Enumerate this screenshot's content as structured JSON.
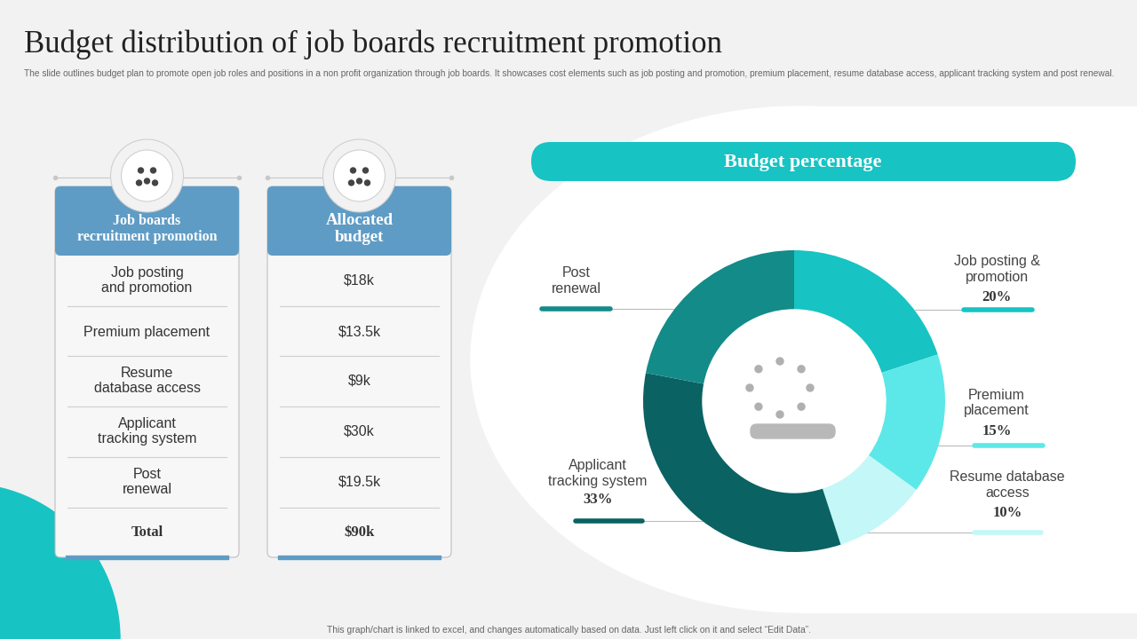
{
  "header": {
    "title": "Budget distribution of job boards recruitment promotion",
    "subtitle": "The slide outlines budget plan to promote open job roles and positions in a non profit organization through job boards. It showcases cost elements such as job posting and promotion, premium placement, resume database access, applicant tracking system and post renewal."
  },
  "table": {
    "columns": [
      "Job boards\nrecruitment promotion",
      "Allocated\nbudget"
    ],
    "rows": [
      [
        "Job posting\nand promotion",
        "$18k"
      ],
      [
        "Premium placement",
        "$13.5k"
      ],
      [
        "Resume\ndatabase access",
        "$9k"
      ],
      [
        "Applicant\ntracking system",
        "$30k"
      ],
      [
        "Post\nrenewal",
        "$19.5k"
      ]
    ],
    "total": [
      "Total",
      "$90k"
    ]
  },
  "chart_data": {
    "type": "donut",
    "title": "Budget percentage",
    "categories": [
      "Job posting &\npromotion",
      "Premium\nplacement",
      "Resume database\naccess",
      "Applicant\ntracking system",
      "Post\nrenewal"
    ],
    "values": [
      20,
      15,
      10,
      33,
      22
    ],
    "value_labels": [
      "20%",
      "15%",
      "10%",
      "33%",
      null
    ],
    "colors": [
      "#17c3c3",
      "#5ce8e8",
      "#c4f7f7",
      "#0b6262",
      "#138b89"
    ],
    "data_labels": true
  },
  "footer": "This graph/chart is linked to excel, and changes automatically based on data. Just left click on it and select “Edit Data”."
}
